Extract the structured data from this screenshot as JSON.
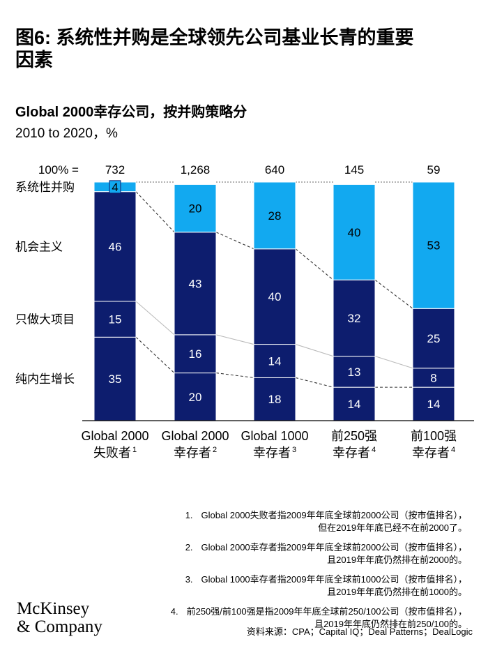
{
  "title_line1": "图6: 系统性并购是全球领先公司基业长青的重要",
  "title_line2": "因素",
  "subtitle": "Global 2000幸存公司，按并购策略分",
  "subnote": "2010 to 2020，%",
  "chart_data": {
    "type": "bar",
    "stacked": true,
    "total_prefix": "100% =",
    "categories": [
      {
        "line1": "Global 2000",
        "line2": "失败者",
        "sup": "1",
        "total": "732"
      },
      {
        "line1": "Global 2000",
        "line2": "幸存者",
        "sup": "2",
        "total": "1,268"
      },
      {
        "line1": "Global 1000",
        "line2": "幸存者",
        "sup": "3",
        "total": "640"
      },
      {
        "line1": "前250强",
        "line2": "幸存者",
        "sup": "4",
        "total": "145"
      },
      {
        "line1": "前100强",
        "line2": "幸存者",
        "sup": "4",
        "total": "59"
      }
    ],
    "series": [
      {
        "name": "纯内生增长",
        "values": [
          35,
          20,
          18,
          14,
          14
        ],
        "color": "#0d1d6e"
      },
      {
        "name": "只做大项目",
        "values": [
          15,
          16,
          14,
          13,
          8
        ],
        "color": "#0d1d6e"
      },
      {
        "name": "机会主义",
        "values": [
          46,
          43,
          40,
          32,
          25
        ],
        "color": "#0d1d6e"
      },
      {
        "name": "系统性并购",
        "values": [
          4,
          20,
          28,
          40,
          53
        ],
        "color": "#12a9f0"
      }
    ],
    "ylim": [
      0,
      100
    ],
    "legend_position": "left"
  },
  "footnotes": [
    {
      "num": "1.",
      "line1": "Global 2000失败者指2009年年底全球前2000公司（按市值排名），",
      "line2": "但在2019年年底已经不在前2000了。"
    },
    {
      "num": "2.",
      "line1": "Global 2000幸存者指2009年年底全球前2000公司（按市值排名），",
      "line2": "且2019年年底仍然排在前2000的。"
    },
    {
      "num": "3.",
      "line1": "Global 1000幸存者指2009年年底全球前1000公司（按市值排名），",
      "line2": "且2019年年底仍然排在前1000的。"
    },
    {
      "num": "4.",
      "line1": "前250强/前100强是指2009年年底全球前250/100公司（按市值排名），",
      "line2": "且2019年年底仍然排在前250/100的。"
    }
  ],
  "source": "资料来源：CPA；Capital IQ；Deal Patterns；DealLogic",
  "logo_line1": "McKinsey",
  "logo_line2": "& Company"
}
